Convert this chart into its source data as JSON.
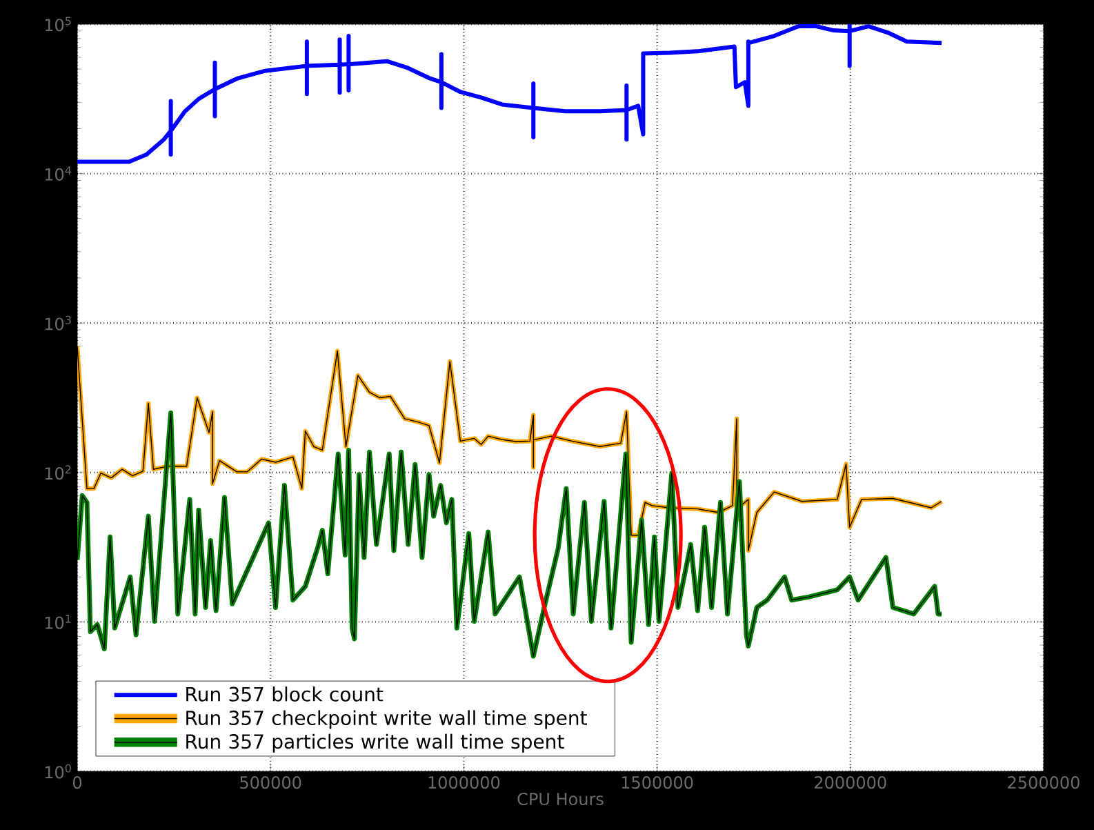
{
  "chart_data": {
    "type": "line",
    "xlabel": "CPU Hours",
    "xlim": [
      0,
      2500000
    ],
    "ylim": [
      1,
      100000
    ],
    "xticks": [
      0,
      500000,
      1000000,
      1500000,
      2000000,
      2500000
    ],
    "yticks": [
      {
        "value": 1,
        "label": "10$^{0}$"
      },
      {
        "value": 10,
        "label": "10$^{1}$"
      },
      {
        "value": 100,
        "label": "10$^{2}$"
      },
      {
        "value": 1000,
        "label": "10$^{3}$"
      },
      {
        "value": 10000,
        "label": "10$^{4}$"
      },
      {
        "value": 100000,
        "label": "10$^{5}$"
      }
    ],
    "log": true,
    "grid": true,
    "legend": "bottom left",
    "series": [
      {
        "name": "Run 357 block count",
        "color": "#0000ff",
        "x": [
          0,
          134000,
          179000,
          224000,
          242000,
          242000,
          242000,
          242000,
          278000,
          314000,
          356000,
          356000,
          356000,
          356000,
          413000,
          486000,
          594000,
          594000,
          594000,
          594000,
          679000,
          679000,
          679000,
          679000,
          702000,
          702000,
          702000,
          702000,
          801000,
          856000,
          910000,
          942000,
          942000,
          942000,
          942000,
          991000,
          1045000,
          1099000,
          1180000,
          1180000,
          1180000,
          1180000,
          1262000,
          1352000,
          1421000,
          1421000,
          1421000,
          1421000,
          1451000,
          1464000,
          1464000,
          1532000,
          1605000,
          1700000,
          1704000,
          1727000,
          1736000,
          1736000,
          1736000,
          1803000,
          1866000,
          1911000,
          1957000,
          1998000,
          1998000,
          1998000,
          1998000,
          2047000,
          2101000,
          2146000,
          2236000
        ],
        "values": [
          12000,
          12000,
          13400,
          16900,
          19300,
          30600,
          13400,
          19300,
          26000,
          31600,
          36700,
          55300,
          24200,
          36700,
          43200,
          48700,
          52500,
          76400,
          34100,
          52500,
          53600,
          78900,
          34800,
          53600,
          53900,
          83400,
          36000,
          53900,
          56500,
          50800,
          43600,
          40900,
          63000,
          27500,
          40900,
          35200,
          32300,
          29000,
          27500,
          40100,
          17500,
          27500,
          26100,
          26100,
          26600,
          38800,
          16900,
          26600,
          28400,
          18300,
          63700,
          64300,
          65800,
          70800,
          37900,
          40900,
          28400,
          76400,
          74800,
          83400,
          96800,
          96800,
          90800,
          89700,
          100000,
          52500,
          89700,
          96800,
          86900,
          76400,
          74800
        ]
      },
      {
        "name": "Run 357 checkpoint write wall time spent",
        "color": "#ffa500",
        "x": [
          0,
          25000,
          43000,
          61000,
          88000,
          116000,
          143000,
          170000,
          184000,
          197000,
          233000,
          283000,
          310000,
          341000,
          350000,
          350000,
          368000,
          413000,
          440000,
          477000,
          513000,
          558000,
          581000,
          590000,
          612000,
          634000,
          673000,
          695000,
          726000,
          756000,
          783000,
          810000,
          847000,
          883000,
          910000,
          937000,
          964000,
          991000,
          1027000,
          1045000,
          1063000,
          1099000,
          1135000,
          1171000,
          1180000,
          1180000,
          1180000,
          1226000,
          1280000,
          1352000,
          1406000,
          1421000,
          1433000,
          1451000,
          1469000,
          1487000,
          1532000,
          1605000,
          1659000,
          1695000,
          1706000,
          1706000,
          1717000,
          1736000,
          1736000,
          1758000,
          1803000,
          1875000,
          1966000,
          1989000,
          1998000,
          2029000,
          2110000,
          2164000,
          2209000,
          2236000
        ],
        "values": [
          700,
          78,
          78,
          99,
          92,
          105,
          95,
          102,
          290,
          105,
          110,
          110,
          316,
          185,
          255,
          84,
          120,
          101,
          101,
          123,
          117,
          127,
          78,
          189,
          149,
          141,
          650,
          149,
          446,
          344,
          316,
          323,
          229,
          217,
          206,
          116,
          553,
          162,
          169,
          154,
          175,
          166,
          161,
          162,
          242,
          108,
          165,
          175,
          162,
          149,
          157,
          255,
          38,
          38,
          63,
          60,
          58,
          57,
          54,
          60,
          229,
          48,
          60,
          66,
          30,
          54,
          74,
          64,
          66,
          114,
          43,
          66,
          67,
          62,
          58,
          64
        ]
      },
      {
        "name": "Run 357 particles write wall time spent",
        "color": "#008000",
        "x": [
          0,
          13000,
          25000,
          34000,
          52000,
          70000,
          85000,
          97000,
          137000,
          152000,
          184000,
          200000,
          242000,
          260000,
          291000,
          305000,
          314000,
          332000,
          345000,
          359000,
          381000,
          401000,
          495000,
          513000,
          536000,
          558000,
          590000,
          623000,
          634000,
          648000,
          675000,
          693000,
          702000,
          711000,
          717000,
          729000,
          742000,
          756000,
          774000,
          807000,
          819000,
          838000,
          856000,
          874000,
          892000,
          910000,
          922000,
          940000,
          955000,
          969000,
          982000,
          1013000,
          1027000,
          1063000,
          1081000,
          1144000,
          1180000,
          1208000,
          1244000,
          1265000,
          1283000,
          1312000,
          1330000,
          1363000,
          1381000,
          1419000,
          1433000,
          1460000,
          1478000,
          1493000,
          1505000,
          1538000,
          1554000,
          1587000,
          1605000,
          1623000,
          1641000,
          1664000,
          1682000,
          1713000,
          1731000,
          1736000,
          1758000,
          1785000,
          1830000,
          1848000,
          1893000,
          1966000,
          1998000,
          2020000,
          2092000,
          2110000,
          2164000,
          2218000,
          2227000,
          2236000
        ],
        "values": [
          26,
          70,
          63,
          8.6,
          9.6,
          6.6,
          37,
          9.1,
          20,
          8.2,
          51,
          10.1,
          250,
          11.3,
          66,
          11.3,
          56,
          12.5,
          35,
          11.9,
          68,
          13.2,
          46,
          12.5,
          82,
          14,
          17.3,
          32,
          41,
          21,
          133,
          28,
          141,
          9.1,
          7.7,
          97,
          27,
          137,
          33,
          133,
          30,
          137,
          33,
          113,
          27,
          97,
          51,
          82,
          46,
          66,
          9.1,
          39,
          10.1,
          40,
          11.3,
          20,
          5.9,
          12.5,
          31,
          78,
          11.3,
          63,
          10.1,
          64,
          9.1,
          133,
          7.3,
          48,
          9.6,
          37,
          10.1,
          99,
          12.5,
          33,
          11.9,
          43,
          12.5,
          63,
          11.3,
          87,
          8.2,
          6.9,
          12.5,
          14,
          20,
          14,
          14.7,
          16.4,
          20,
          14,
          27,
          12.5,
          11.3,
          17.3,
          11.3,
          11.3
        ]
      }
    ]
  }
}
